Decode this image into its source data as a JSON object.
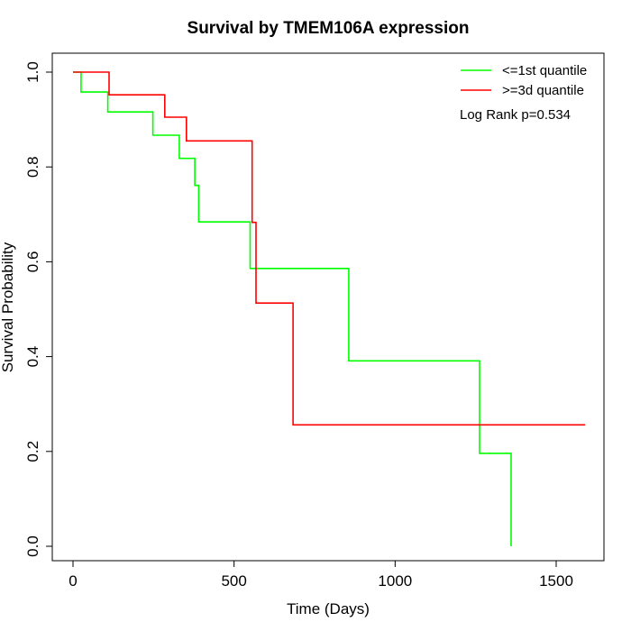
{
  "chart_data": {
    "type": "line",
    "title": "Survival by TMEM106A expression",
    "xlabel": "Time (Days)",
    "ylabel": "Survival Probability",
    "xlim": [
      0,
      1600
    ],
    "ylim": [
      0,
      1.0
    ],
    "x_ticks": [
      0,
      500,
      1000,
      1500
    ],
    "x_tick_labels": [
      "0",
      "500",
      "1000",
      "1500"
    ],
    "y_ticks": [
      0.0,
      0.2,
      0.4,
      0.6,
      0.8,
      1.0
    ],
    "y_tick_labels": [
      "0.0",
      "0.2",
      "0.4",
      "0.6",
      "0.8",
      "1.0"
    ],
    "grid": false,
    "legend_position": "top-right",
    "annotation": "Log Rank p=0.534",
    "series": [
      {
        "name": "<=1st quantile",
        "color": "#00ff00",
        "x": [
          0,
          25,
          25,
          108,
          108,
          248,
          248,
          330,
          330,
          378,
          378,
          390,
          390,
          550,
          550,
          856,
          856,
          1262,
          1262,
          1360,
          1360
        ],
        "y": [
          1.0,
          1.0,
          0.958,
          0.958,
          0.916,
          0.916,
          0.867,
          0.867,
          0.818,
          0.818,
          0.761,
          0.761,
          0.684,
          0.684,
          0.586,
          0.586,
          0.391,
          0.391,
          0.196,
          0.196,
          0.0
        ]
      },
      {
        "name": ">=3d quantile",
        "color": "#ff0000",
        "x": [
          0,
          112,
          112,
          285,
          285,
          352,
          352,
          556,
          556,
          568,
          568,
          683,
          683,
          1590
        ],
        "y": [
          1.0,
          1.0,
          0.952,
          0.952,
          0.905,
          0.905,
          0.855,
          0.855,
          0.683,
          0.683,
          0.513,
          0.513,
          0.256,
          0.256
        ]
      }
    ]
  }
}
